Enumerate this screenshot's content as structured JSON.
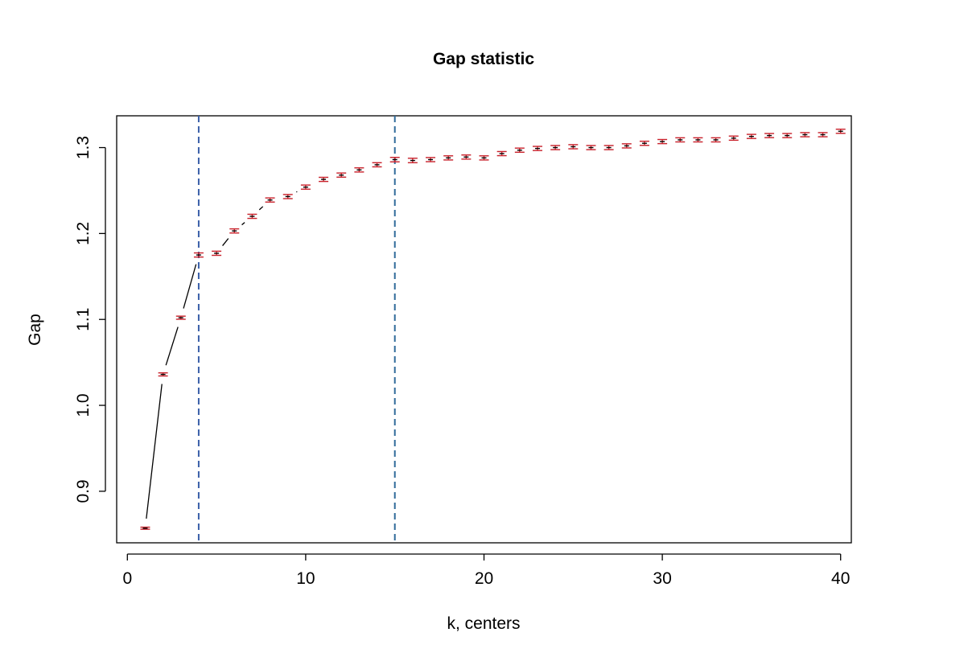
{
  "chart_data": {
    "type": "scatter",
    "title": "Gap statistic",
    "xlabel": "k, centers",
    "ylabel": "Gap",
    "xlim": [
      -0.6,
      40.6
    ],
    "ylim": [
      0.84,
      1.337
    ],
    "x_ticks": [
      0,
      10,
      20,
      30,
      40
    ],
    "y_ticks": [
      0.9,
      1.0,
      1.1,
      1.2,
      1.3
    ],
    "x_tick_labels": [
      "0",
      "10",
      "20",
      "30",
      "40"
    ],
    "y_tick_labels": [
      "0.9",
      "1.0",
      "1.1",
      "1.2",
      "1.3"
    ],
    "grid": false,
    "series": [
      {
        "x": [
          1,
          2,
          3,
          4,
          5,
          6,
          7,
          8,
          9,
          10,
          11,
          12,
          13,
          14,
          15,
          16,
          17,
          18,
          19,
          20,
          21,
          22,
          23,
          24,
          25,
          26,
          27,
          28,
          29,
          30,
          31,
          32,
          33,
          34,
          35,
          36,
          37,
          38,
          39,
          40
        ],
        "values": [
          0.857,
          1.036,
          1.102,
          1.175,
          1.177,
          1.203,
          1.22,
          1.239,
          1.243,
          1.254,
          1.263,
          1.268,
          1.274,
          1.28,
          1.286,
          1.285,
          1.286,
          1.288,
          1.289,
          1.288,
          1.293,
          1.297,
          1.299,
          1.3,
          1.301,
          1.3,
          1.3,
          1.302,
          1.305,
          1.307,
          1.309,
          1.309,
          1.309,
          1.311,
          1.313,
          1.314,
          1.314,
          1.315,
          1.315,
          1.319
        ],
        "se": [
          0.0012,
          0.0018,
          0.0018,
          0.0024,
          0.0024,
          0.0024,
          0.0024,
          0.0024,
          0.0024,
          0.0024,
          0.0024,
          0.0024,
          0.0024,
          0.0024,
          0.0026,
          0.0026,
          0.0024,
          0.0024,
          0.0024,
          0.0024,
          0.0024,
          0.0024,
          0.0024,
          0.0024,
          0.0024,
          0.0024,
          0.0024,
          0.0024,
          0.0024,
          0.0024,
          0.0024,
          0.0024,
          0.0024,
          0.0024,
          0.0024,
          0.0024,
          0.0024,
          0.0024,
          0.0024,
          0.0024
        ]
      }
    ],
    "connected_points": 10,
    "vertical_lines": [
      {
        "x": 4,
        "color": "#3a5fa8"
      },
      {
        "x": 15,
        "color": "#2f6a9a"
      }
    ],
    "colors": {
      "error_bars": "#c8202a",
      "line": "#000000"
    }
  }
}
